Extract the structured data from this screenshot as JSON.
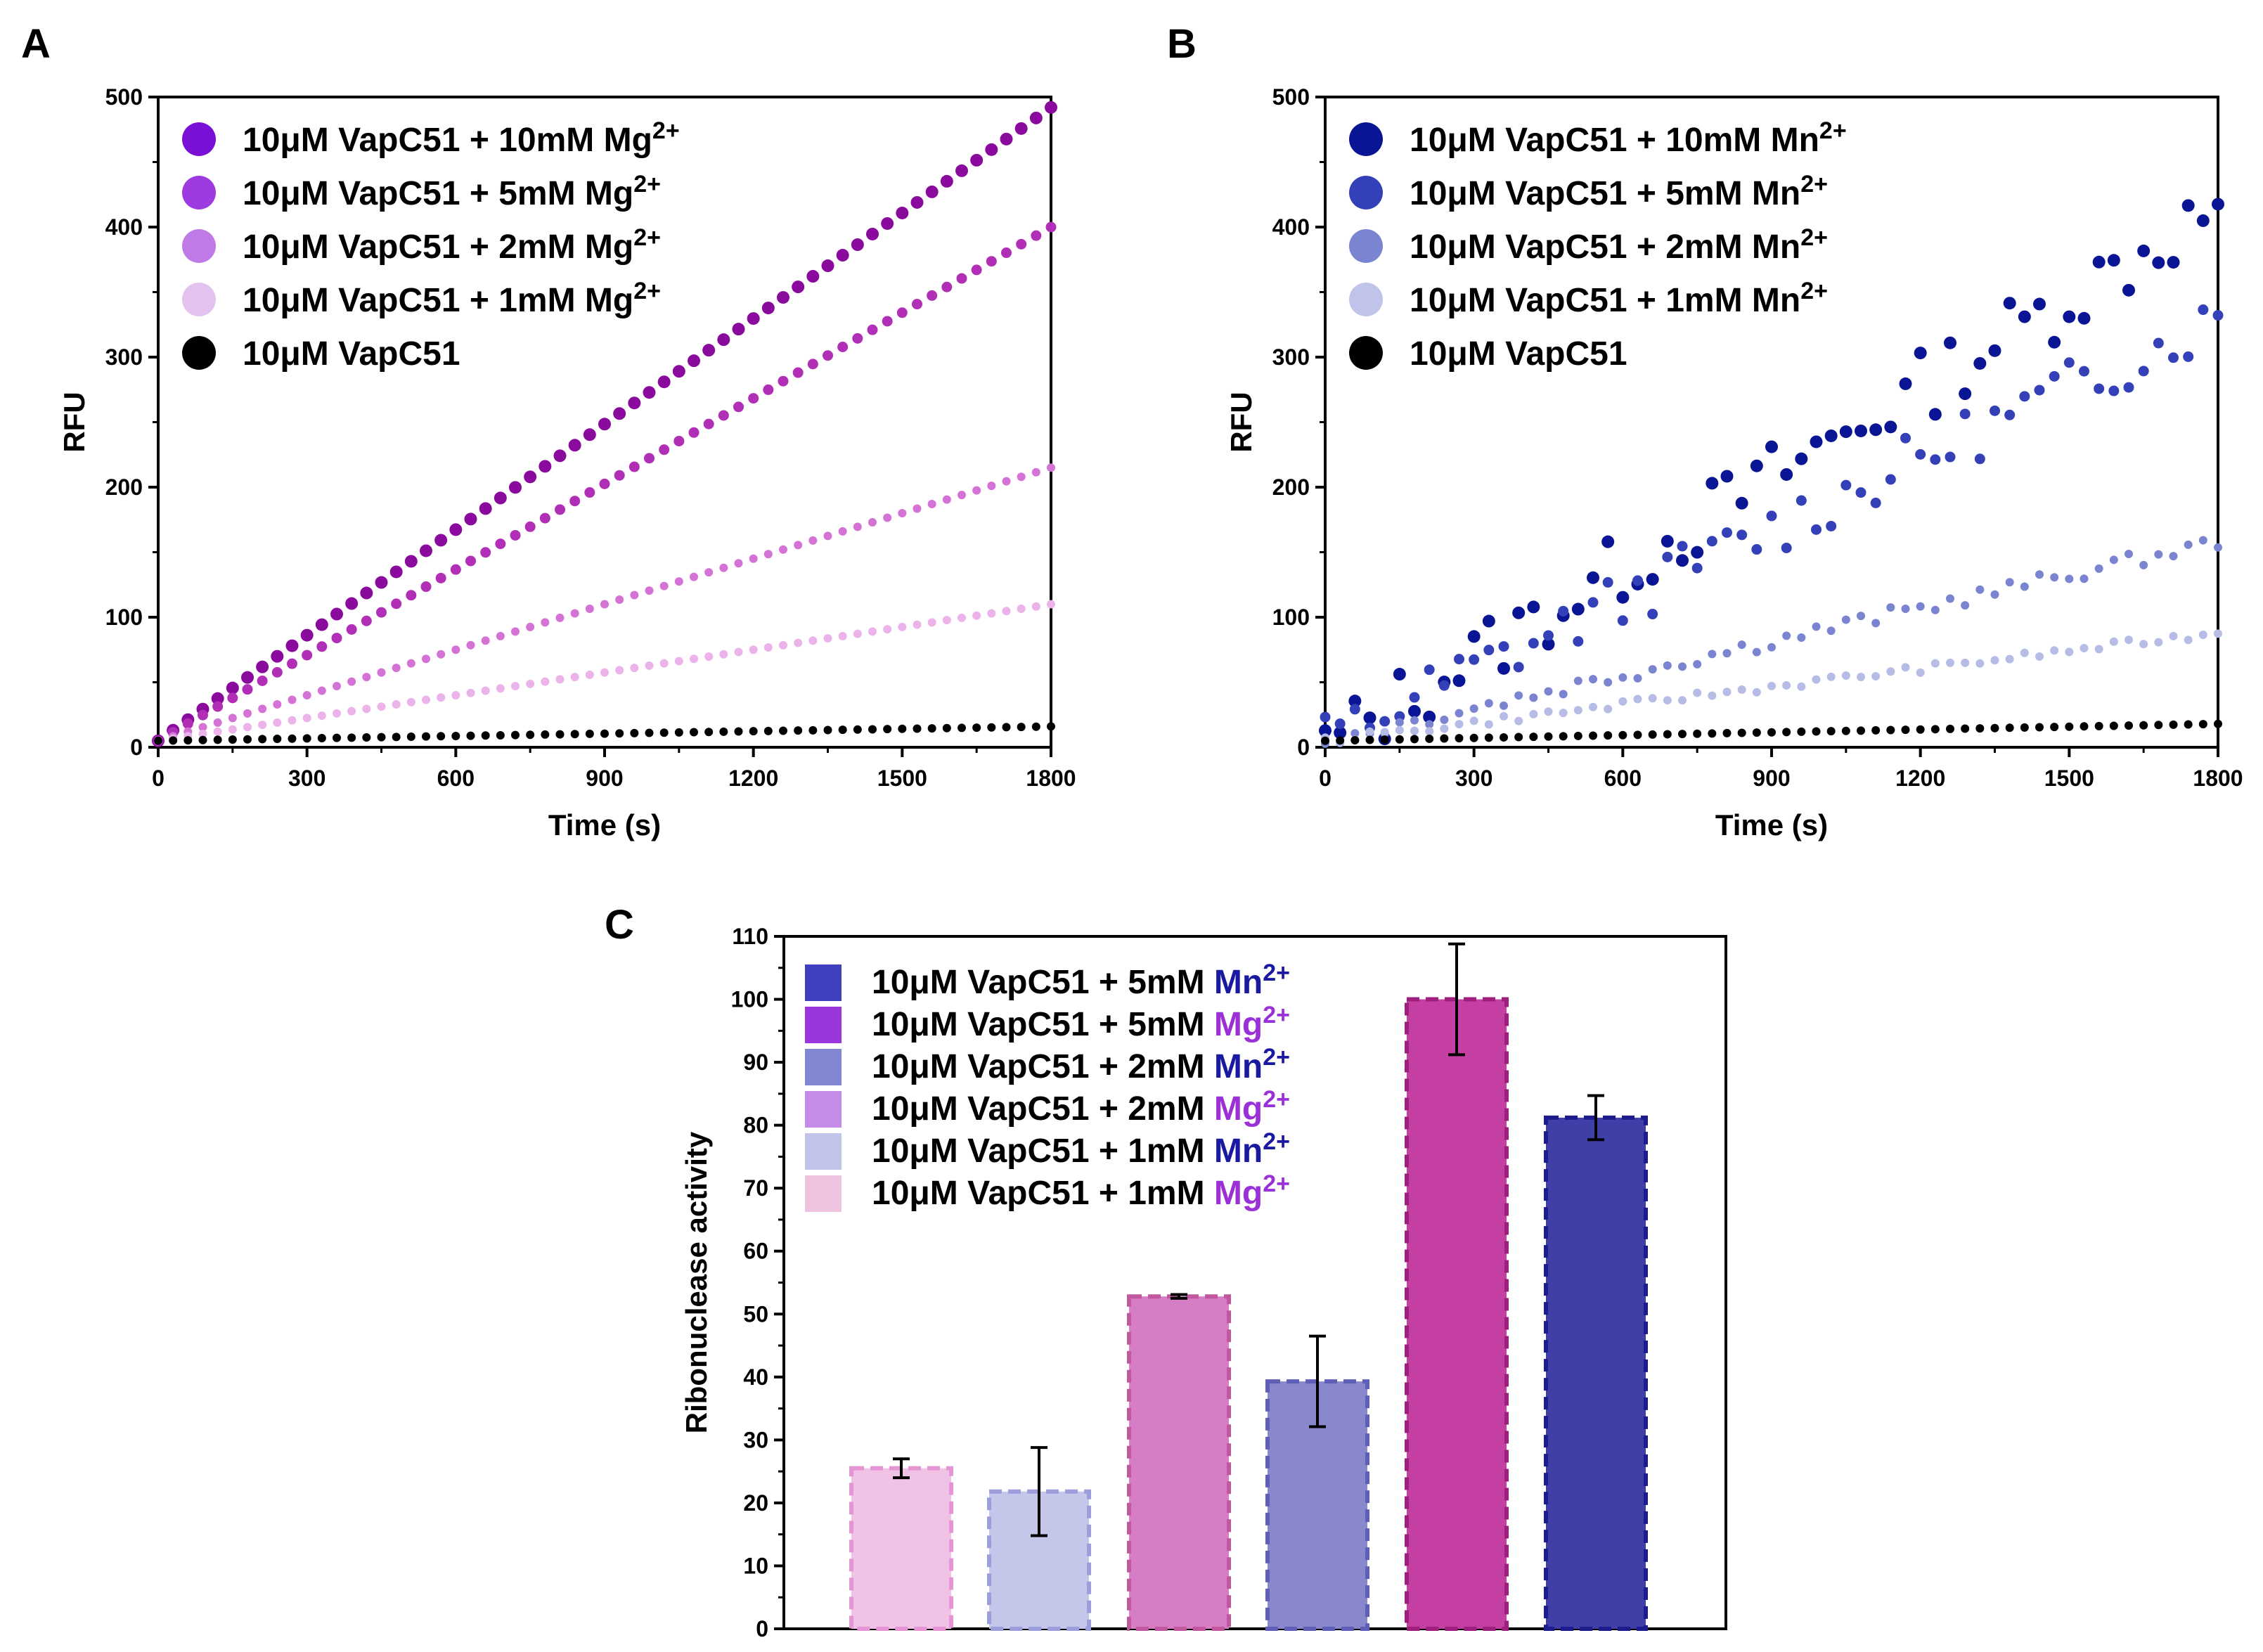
{
  "figure": {
    "panels": [
      "A",
      "B",
      "C"
    ]
  },
  "chart_data": [
    {
      "panel": "A",
      "type": "scatter",
      "xlabel": "Time (s)",
      "ylabel": "RFU",
      "xlim": [
        0,
        1800
      ],
      "ylim": [
        0,
        500
      ],
      "xticks": [
        0,
        300,
        600,
        900,
        1200,
        1500,
        1800
      ],
      "yticks": [
        0,
        100,
        200,
        300,
        400,
        500
      ],
      "legend_position": "top-left",
      "series": [
        {
          "prefix": "10μM VapC51 + 10mM Mg",
          "sup": "2+",
          "color": "#8a0a9e",
          "marker": "large",
          "x_start": 0,
          "x_step": 30,
          "y_start": 5,
          "y_end": 492,
          "noise": 0
        },
        {
          "prefix": "10μM VapC51 + 5mM Mg",
          "sup": "2+",
          "color": "#b12fb6",
          "marker": "medium",
          "x_start": 0,
          "x_step": 30,
          "y_start": 5,
          "y_end": 400,
          "noise": 0
        },
        {
          "prefix": "10μM VapC51 + 2mM Mg",
          "sup": "2+",
          "color": "#d472d6",
          "marker": "small",
          "x_start": 0,
          "x_step": 30,
          "y_start": 5,
          "y_end": 215,
          "noise": 0
        },
        {
          "prefix": "10μM VapC51 + 1mM Mg",
          "sup": "2+",
          "color": "#ebb3ea",
          "marker": "small",
          "x_start": 0,
          "x_step": 30,
          "y_start": 5,
          "y_end": 110,
          "noise": 0
        },
        {
          "prefix": "10μM VapC51",
          "sup": "",
          "color": "#000000",
          "marker": "small",
          "x_start": 0,
          "x_step": 30,
          "y_start": 5,
          "y_end": 16,
          "noise": 0
        }
      ],
      "legend_colors": [
        "#7a0fd6",
        "#9d3be0",
        "#c07ae6",
        "#e3c2ef",
        "#000000"
      ]
    },
    {
      "panel": "B",
      "type": "scatter",
      "xlabel": "Time (s)",
      "ylabel": "RFU",
      "xlim": [
        0,
        1800
      ],
      "ylim": [
        0,
        500
      ],
      "xticks": [
        0,
        300,
        600,
        900,
        1200,
        1500,
        1800
      ],
      "yticks": [
        0,
        100,
        200,
        300,
        400,
        500
      ],
      "legend_position": "top-left",
      "series": [
        {
          "prefix": "10μM VapC51 + 10mM Mn",
          "sup": "2+",
          "color": "#0a1596",
          "marker": "large",
          "x_start": 0,
          "x_step": 30,
          "y_start": 0,
          "y_end": 415,
          "noise": 28
        },
        {
          "prefix": "10μM VapC51 + 5mM Mn",
          "sup": "2+",
          "color": "#3340b8",
          "marker": "medium",
          "x_start": 0,
          "x_step": 30,
          "y_start": 5,
          "y_end": 330,
          "noise": 22
        },
        {
          "prefix": "10μM VapC51 + 2mM Mn",
          "sup": "2+",
          "color": "#7a84d0",
          "marker": "small",
          "x_start": 0,
          "x_step": 30,
          "y_start": 5,
          "y_end": 158,
          "noise": 6
        },
        {
          "prefix": "10μM VapC51 + 1mM Mn",
          "sup": "2+",
          "color": "#b7bce6",
          "marker": "small",
          "x_start": 0,
          "x_step": 30,
          "y_start": 5,
          "y_end": 88,
          "noise": 3
        },
        {
          "prefix": "10μM VapC51",
          "sup": "",
          "color": "#000000",
          "marker": "small",
          "x_start": 0,
          "x_step": 30,
          "y_start": 5,
          "y_end": 18,
          "noise": 0
        }
      ],
      "legend_colors": [
        "#0a1596",
        "#3340b8",
        "#7a84d0",
        "#c0c3ea",
        "#000000"
      ]
    },
    {
      "panel": "C",
      "type": "bar",
      "ylabel": "Ribonuclease activity",
      "ylim": [
        0,
        110
      ],
      "yticks": [
        0,
        10,
        20,
        30,
        40,
        50,
        60,
        70,
        80,
        90,
        100,
        110
      ],
      "legend_position": "top-left",
      "categories": [
        "1mM Mg2+",
        "1mM Mn2+",
        "2mM Mg2+",
        "2mM Mn2+",
        "5mM Mg2+",
        "5mM Mn2+"
      ],
      "values": [
        25.5,
        21.8,
        52.8,
        39.3,
        100,
        81.2
      ],
      "errors": [
        1.5,
        7,
        0.3,
        7.2,
        8.8,
        3.5
      ],
      "colors": [
        "#f0c3e6",
        "#c4c6ea",
        "#d67dc6",
        "#8a88cd",
        "#c53ea2",
        "#3f3fa7"
      ],
      "edge_colors": [
        "#e595d3",
        "#9d9fdc",
        "#c0579f",
        "#5f5fb7",
        "#9f1f7f",
        "#1c1c8d"
      ],
      "legend": [
        {
          "prefix": "10μM VapC51 + 5mM ",
          "ion": "Mn",
          "sup": "2+",
          "swatch": "#3f3fc0",
          "ion_color": "#1a1aa0"
        },
        {
          "prefix": "10μM VapC51 + 5mM ",
          "ion": "Mg",
          "sup": "2+",
          "swatch": "#9b35dc",
          "ion_color": "#9b2fd8"
        },
        {
          "prefix": "10μM VapC51 + 2mM ",
          "ion": "Mn",
          "sup": "2+",
          "swatch": "#8286d2",
          "ion_color": "#1a1aa0"
        },
        {
          "prefix": "10μM VapC51 + 2mM ",
          "ion": "Mg",
          "sup": "2+",
          "swatch": "#c68ae8",
          "ion_color": "#9b2fd8"
        },
        {
          "prefix": "10μM VapC51 + 1mM ",
          "ion": "Mn",
          "sup": "2+",
          "swatch": "#c2c4ea",
          "ion_color": "#1a1aa0"
        },
        {
          "prefix": "10μM VapC51 + 1mM ",
          "ion": "Mg",
          "sup": "2+",
          "swatch": "#eec3df",
          "ion_color": "#9b2fd8"
        }
      ]
    }
  ]
}
